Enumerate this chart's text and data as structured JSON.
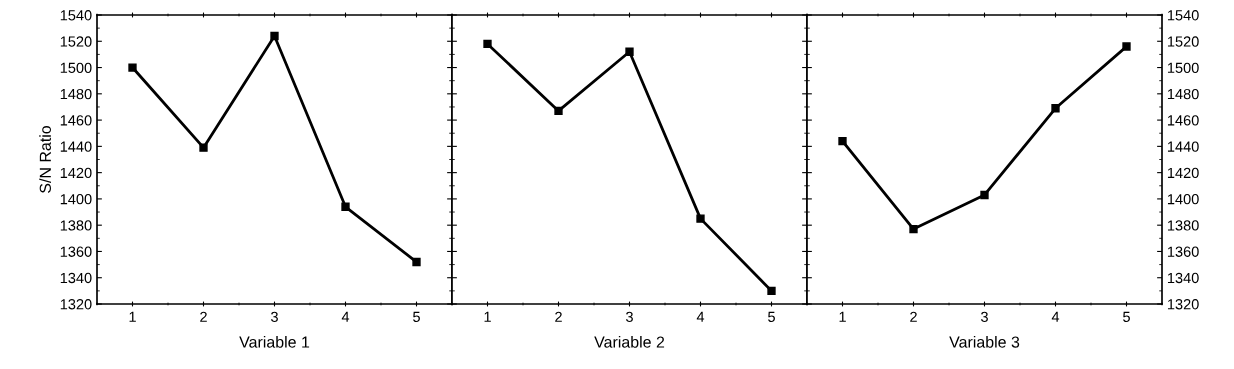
{
  "chart_data": [
    {
      "type": "line",
      "xlabel": "Variable 1",
      "ylabel": "S/N Ratio",
      "x": [
        1,
        2,
        3,
        4,
        5
      ],
      "marker": "square",
      "line_style": "solid",
      "xlim": [
        0.5,
        5.5
      ],
      "xticks": [
        1,
        2,
        3,
        4,
        5
      ],
      "ylim": [
        1320,
        1540
      ],
      "yticks": [
        1320,
        1340,
        1360,
        1380,
        1400,
        1420,
        1440,
        1460,
        1480,
        1500,
        1520,
        1540
      ],
      "series": [
        {
          "color": "#000000",
          "values": [
            1500,
            1439,
            1524,
            1394,
            1352
          ]
        }
      ]
    },
    {
      "type": "line",
      "xlabel": "Variable 2",
      "x": [
        1,
        2,
        3,
        4,
        5
      ],
      "marker": "square",
      "line_style": "solid",
      "xlim": [
        0.5,
        5.5
      ],
      "xticks": [
        1,
        2,
        3,
        4,
        5
      ],
      "ylim": [
        1320,
        1540
      ],
      "yticks": [
        1320,
        1340,
        1360,
        1380,
        1400,
        1420,
        1440,
        1460,
        1480,
        1500,
        1520,
        1540
      ],
      "tick_labels": "x",
      "series": [
        {
          "color": "#000000",
          "values": [
            1518,
            1467,
            1512,
            1385,
            1330
          ]
        }
      ]
    },
    {
      "type": "line",
      "xlabel": "Variable 3",
      "x": [
        1,
        2,
        3,
        4,
        5
      ],
      "marker": "square",
      "line_style": "solid",
      "xlim": [
        0.5,
        5.5
      ],
      "xticks": [
        1,
        2,
        3,
        4,
        5
      ],
      "y2lim": [
        1320,
        1540
      ],
      "y2ticks": [
        1320,
        1340,
        1360,
        1380,
        1400,
        1420,
        1440,
        1460,
        1480,
        1500,
        1520,
        1540
      ],
      "series": [
        {
          "color": "#000000",
          "axis": "y2",
          "values": [
            1444,
            1377,
            1403,
            1469,
            1516
          ]
        }
      ]
    }
  ]
}
